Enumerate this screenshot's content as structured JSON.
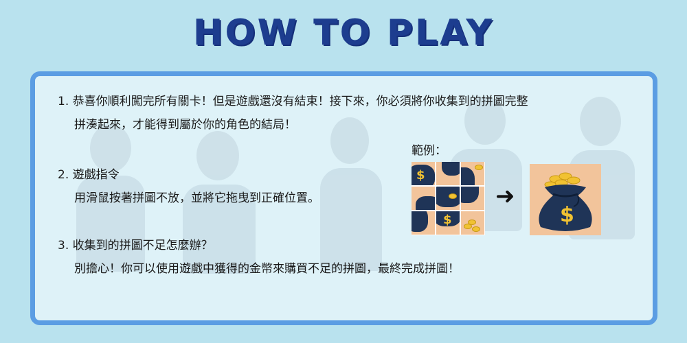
{
  "title": "HOW TO PLAY",
  "steps": [
    {
      "number": "1.",
      "lines": [
        "恭喜你順利闖完所有關卡！但是遊戲還沒有結束！接下來，你必須將你收集到的拼圖完整",
        "拼湊起來，才能得到屬於你的角色的結局！"
      ]
    },
    {
      "number": "2.",
      "lines": [
        "遊戲指令",
        "用滑鼠按著拼圖不放，並將它拖曳到正確位置。"
      ]
    },
    {
      "number": "3.",
      "lines": [
        "收集到的拼圖不足怎麼辦？",
        "別擔心！你可以使用遊戲中獲得的金幣來購買不足的拼圖，最終完成拼圖！"
      ]
    }
  ],
  "example": {
    "label": "範例：",
    "arrow": "➜",
    "tile_dollar": "$",
    "bag_dollar": "$"
  },
  "colors": {
    "background": "#b9e2ee",
    "title": "#1d3d8f",
    "panel_border": "#5b9de3",
    "tile_background": "#f2c49b",
    "bag": "#1f3457",
    "coin": "#f1c232"
  }
}
